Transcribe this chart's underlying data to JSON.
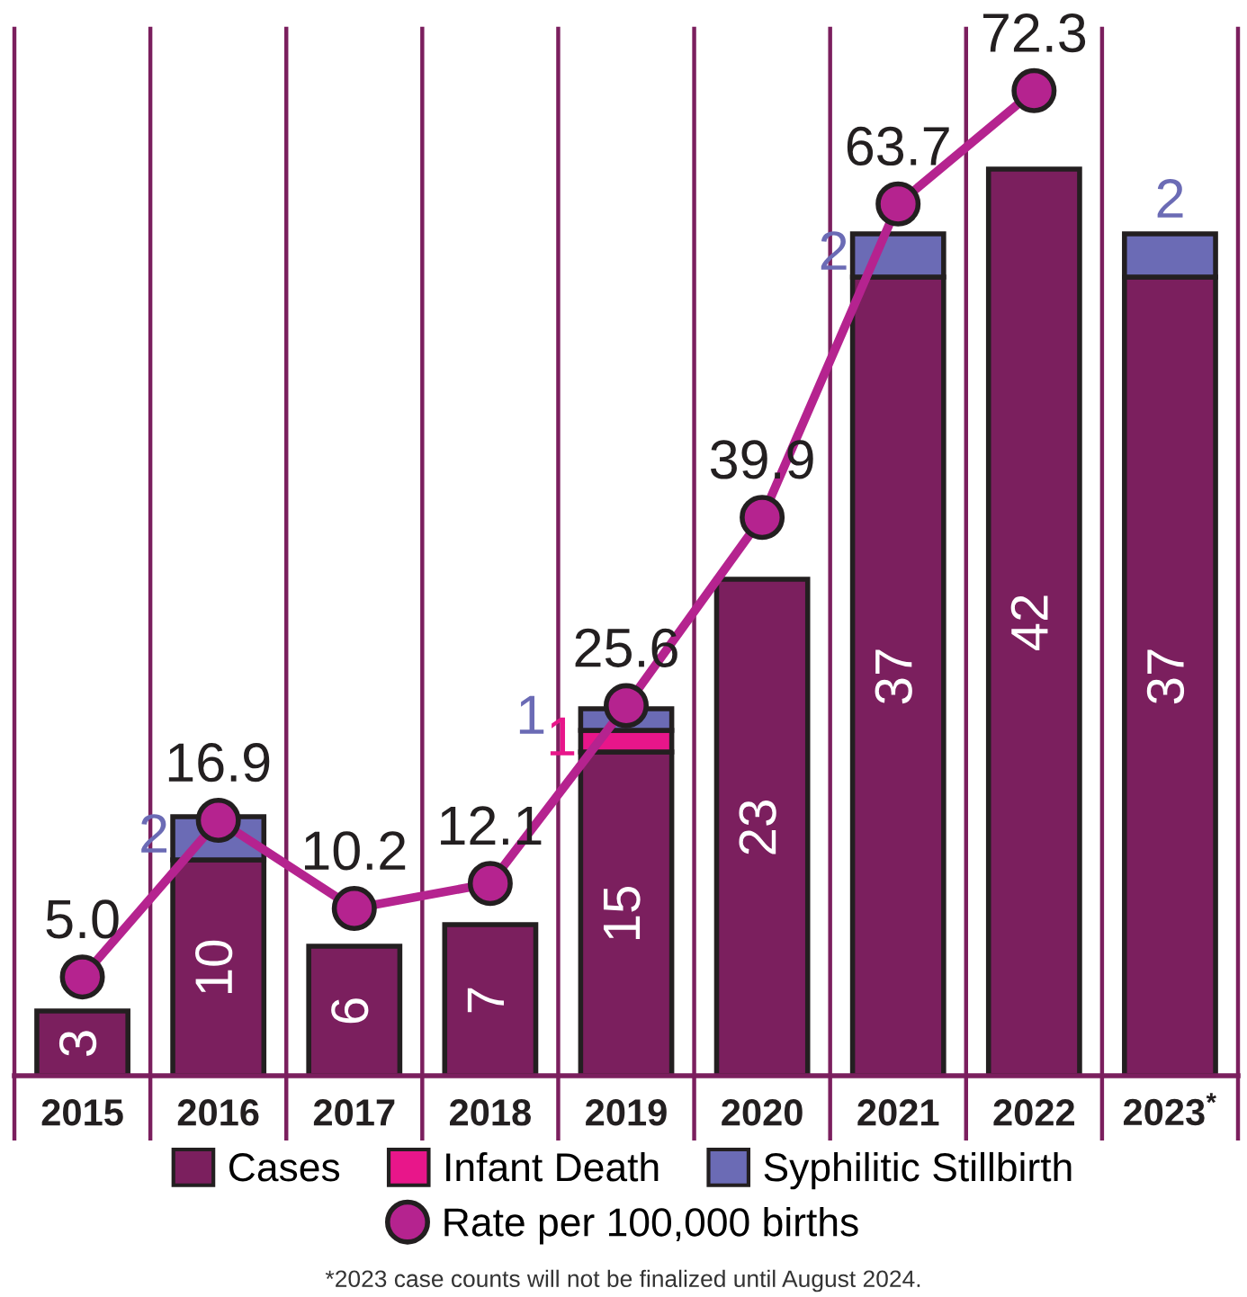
{
  "chart_data": {
    "type": "bar",
    "stacked": true,
    "categories": [
      "2015",
      "2016",
      "2017",
      "2018",
      "2019",
      "2020",
      "2021",
      "2022",
      "2023$^{*}$"
    ],
    "series": [
      {
        "name": "Cases",
        "color": "#7b1f5e",
        "values": [
          3,
          10,
          6,
          7,
          15,
          23,
          37,
          42,
          37
        ]
      },
      {
        "name": "Infant Death",
        "color": "#e8168a",
        "values": [
          null,
          null,
          null,
          null,
          1,
          null,
          null,
          null,
          null
        ]
      },
      {
        "name": "Syphilitic Stillbirth",
        "color": "#6b6bb5",
        "values": [
          null,
          2,
          null,
          null,
          1,
          null,
          2,
          null,
          2
        ]
      },
      {
        "name": "Rate per 100,000 births",
        "type": "line",
        "axis": "y2",
        "marker": "circle",
        "color": "#b5238f",
        "values": [
          5.0,
          16.9,
          10.2,
          12.1,
          25.6,
          39.9,
          63.7,
          72.3,
          null
        ],
        "value_labels": [
          "5.0",
          "16.9",
          "10.2",
          "12.1",
          "25.6",
          "39.9",
          "63.7",
          "72.3",
          null
        ]
      }
    ],
    "ylim": [
      0,
      48.5
    ],
    "y2lim": [
      -2.5,
      77
    ],
    "data_labels": true,
    "grid": "x",
    "legend": "bottom",
    "tick_labels": "x",
    "annotations": [
      "*2023 case counts will not be finalized until August 2024."
    ]
  }
}
